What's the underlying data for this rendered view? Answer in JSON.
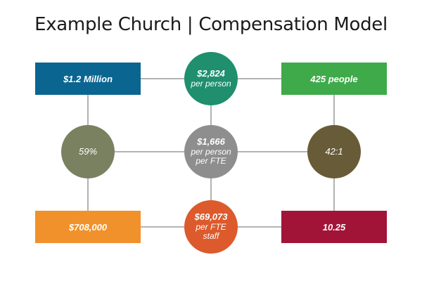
{
  "title": "Example Church | Compensation Model",
  "line_color": "#9a9a9a",
  "boxes": {
    "top_left": {
      "text": "$1.2 Million",
      "color": "#0b6591"
    },
    "top_right": {
      "text": "425 people",
      "color": "#3faa49"
    },
    "bottom_left": {
      "text": "$708,000",
      "color": "#f0912b"
    },
    "bottom_right": {
      "text": "10.25",
      "color": "#a11437"
    }
  },
  "circles": {
    "top": {
      "main": "$2,824",
      "sub1": "per person",
      "sub2": "",
      "color": "#1f8f6e"
    },
    "left": {
      "main": "59%",
      "sub1": "",
      "sub2": "",
      "color": "#7a8160"
    },
    "center": {
      "main": "$1,666",
      "sub1": "per person",
      "sub2": "per FTE",
      "color": "#8e8e8e"
    },
    "right": {
      "main": "42:1",
      "sub1": "",
      "sub2": "",
      "color": "#685c38"
    },
    "bottom": {
      "main": "$69,073",
      "sub1": "per FTE",
      "sub2": "staff",
      "color": "#dc5a2c"
    }
  }
}
